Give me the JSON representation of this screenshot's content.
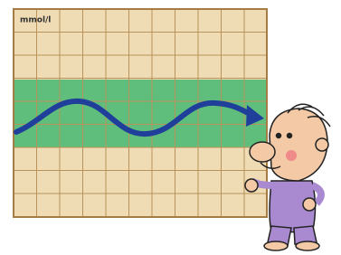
{
  "chart": {
    "unit_label": "mmol/l"
  }
}
